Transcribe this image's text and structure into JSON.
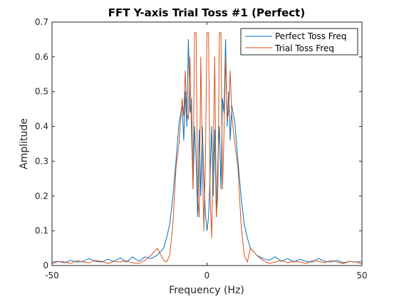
{
  "chart_data": {
    "type": "line",
    "title": "FFT Y-axis Trial Toss #1 (Perfect)",
    "xlabel": "Frequency (Hz)",
    "ylabel": "Amplitude",
    "xlim": [
      -50,
      50
    ],
    "ylim": [
      0,
      0.7
    ],
    "xticks": [
      -50,
      0,
      50
    ],
    "yticks": [
      0,
      0.1,
      0.2,
      0.3,
      0.4,
      0.5,
      0.6,
      0.7
    ],
    "grid": false,
    "legend_position": "top-right",
    "series": [
      {
        "name": "Perfect Toss Freq",
        "color": "#0072BD",
        "x": [
          -50,
          -48,
          -46,
          -44,
          -42,
          -40,
          -38,
          -36,
          -34,
          -32,
          -30,
          -28,
          -26,
          -24,
          -22,
          -20,
          -18,
          -16,
          -14,
          -13,
          -12,
          -11,
          -10,
          -9,
          -8,
          -7.5,
          -7,
          -6.5,
          -6,
          -5.5,
          -5,
          -4.5,
          -4,
          -3.5,
          -3,
          -2.5,
          -2,
          -1.5,
          -1,
          -0.5,
          0,
          0.5,
          1,
          1.5,
          2,
          2.5,
          3,
          3.5,
          4,
          4.5,
          5,
          5.5,
          6,
          6.5,
          7,
          7.5,
          8,
          9,
          10,
          11,
          12,
          13,
          14,
          16,
          18,
          20,
          22,
          24,
          26,
          28,
          30,
          32,
          34,
          36,
          38,
          40,
          42,
          44,
          46,
          48,
          50
        ],
        "y": [
          0.01,
          0.012,
          0.008,
          0.015,
          0.01,
          0.012,
          0.02,
          0.012,
          0.01,
          0.018,
          0.012,
          0.022,
          0.01,
          0.025,
          0.012,
          0.025,
          0.02,
          0.03,
          0.05,
          0.08,
          0.12,
          0.2,
          0.3,
          0.41,
          0.46,
          0.36,
          0.5,
          0.4,
          0.65,
          0.44,
          0.48,
          0.22,
          0.4,
          0.3,
          0.14,
          0.39,
          0.2,
          0.4,
          0.25,
          0.15,
          0.1,
          0.14,
          0.26,
          0.4,
          0.2,
          0.39,
          0.14,
          0.3,
          0.4,
          0.22,
          0.48,
          0.44,
          0.65,
          0.4,
          0.5,
          0.36,
          0.46,
          0.41,
          0.3,
          0.2,
          0.12,
          0.08,
          0.05,
          0.03,
          0.02,
          0.015,
          0.025,
          0.012,
          0.02,
          0.01,
          0.018,
          0.012,
          0.01,
          0.02,
          0.012,
          0.01,
          0.015,
          0.008,
          0.012,
          0.01,
          0.012
        ]
      },
      {
        "name": "Trial Toss Freq",
        "color": "#D95319",
        "x": [
          -50,
          -48,
          -46,
          -44,
          -42,
          -40,
          -38,
          -36,
          -34,
          -32,
          -30,
          -28,
          -26,
          -24,
          -22,
          -20,
          -18,
          -16,
          -14,
          -13,
          -12,
          -11,
          -10,
          -9,
          -8,
          -7.5,
          -7,
          -6.5,
          -6,
          -5.5,
          -5,
          -4.5,
          -4,
          -3.5,
          -3,
          -2.5,
          -2,
          -1.5,
          -1,
          -0.5,
          0,
          0.5,
          1,
          1.5,
          2,
          2.5,
          3,
          3.5,
          4,
          4.5,
          5,
          5.5,
          6,
          6.5,
          7,
          7.5,
          8,
          9,
          10,
          11,
          12,
          13,
          14,
          16,
          18,
          20,
          22,
          24,
          26,
          28,
          30,
          32,
          34,
          36,
          38,
          40,
          42,
          44,
          46,
          48,
          50
        ],
        "y": [
          0.005,
          0.012,
          0.01,
          0.006,
          0.014,
          0.01,
          0.008,
          0.015,
          0.012,
          0.006,
          0.012,
          0.01,
          0.014,
          0.008,
          0.006,
          0.015,
          0.03,
          0.05,
          0.015,
          0.01,
          0.03,
          0.12,
          0.28,
          0.35,
          0.48,
          0.43,
          0.56,
          0.44,
          0.42,
          0.6,
          0.38,
          0.22,
          0.67,
          0.67,
          0.2,
          0.14,
          0.6,
          0.3,
          0.1,
          0.3,
          0.67,
          0.67,
          0.2,
          0.08,
          0.3,
          0.6,
          0.14,
          0.2,
          0.67,
          0.67,
          0.22,
          0.38,
          0.6,
          0.42,
          0.44,
          0.56,
          0.43,
          0.35,
          0.28,
          0.12,
          0.03,
          0.01,
          0.05,
          0.03,
          0.015,
          0.006,
          0.01,
          0.015,
          0.008,
          0.012,
          0.01,
          0.006,
          0.014,
          0.012,
          0.008,
          0.015,
          0.01,
          0.006,
          0.012,
          0.01,
          0.005
        ]
      }
    ]
  }
}
